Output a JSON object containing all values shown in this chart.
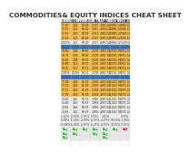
{
  "title": "COMMODITIES& EQUITY INDICES CHEAT SHEET",
  "title_color": "#2d2d2d",
  "title_fontsize": 5.2,
  "col_headers": [
    "SILVER",
    "GOLD COPPER",
    "WTI CRUDE",
    "10 YR",
    "S&P 500",
    "DOW 30",
    "FTSE 100"
  ],
  "header_bg": "#4a4a4a",
  "header_fg": "#ffffff",
  "orange_bg": "#f4b942",
  "white_bg": "#f0f0f0",
  "blue_sep": "#3a6ca8",
  "group1_orange": [
    [
      "17.60",
      "3.21",
      "60.28",
      "2.357",
      "2390.52",
      "20996.12",
      "7368.12"
    ],
    [
      "17.55",
      "3.21",
      "60.12",
      "2.357",
      "2390.52",
      "20996.12",
      "7368.12"
    ],
    [
      "17.67",
      "3.21",
      "60.28",
      "2.357",
      "2390.52",
      "20996.12",
      "7368.12"
    ],
    [
      "17.64",
      "3.21",
      "60.28",
      "2.357",
      "2390.52",
      "20996.12",
      "7368.12"
    ]
  ],
  "group1_white": [
    [
      "1.505%",
      "3.21",
      "60.28",
      "2.357",
      "2390.52",
      "20996.12",
      "1.305%"
    ]
  ],
  "group2_orange": [
    [
      "16.80",
      "3.04",
      "59.68",
      "2.258",
      "2363.74",
      "20743.19",
      "7351.14"
    ],
    [
      "16.79",
      "3.04",
      "59.68",
      "2.258",
      "2363.74",
      "20743.19",
      "7351.14"
    ],
    [
      "16.82",
      "3.08",
      "60.19",
      "2.258",
      "2363.74",
      "20743.19",
      "7351.14"
    ],
    [
      "16.88",
      "3.11",
      "60.31",
      "2.258",
      "2363.74",
      "20743.19",
      "7351.14"
    ],
    [
      "16.91",
      "3.11",
      "60.31",
      "2.258",
      "2363.74",
      "20743.19",
      "7351.14"
    ]
  ],
  "group2_white": [
    [
      "2.395%",
      "0.18%",
      "60.31",
      "2.258",
      "2363.74",
      "20743.19",
      "7351.14"
    ]
  ],
  "group3_orange": [
    [
      "17.08",
      "3.42",
      "61.19",
      "2.358",
      "2397.02",
      "21020.76",
      "7375.12"
    ],
    [
      "17.13",
      "3.42",
      "61.19",
      "2.358",
      "2397.02",
      "21020.76",
      "7375.12"
    ],
    [
      "17.13",
      "3.43",
      "61.19",
      "2.358",
      "2397.02",
      "21020.76",
      "7375.12"
    ],
    [
      "17.19",
      "3.43",
      "61.19",
      "2.358",
      "2397.02",
      "21020.76",
      "7375.12"
    ]
  ],
  "group3_white": [
    [
      "14.80",
      "3.45",
      "60.19",
      "1.958",
      "2397.02",
      "21020.76",
      "7375.12"
    ],
    [
      "14.84",
      "3.45",
      "60.19",
      "1.958",
      "2397.02",
      "21020.76",
      "7375.12"
    ],
    [
      "14.90",
      "3.45",
      "60.19",
      "1.958",
      "2397.02",
      "21020.76",
      "7375.12"
    ],
    [
      "14.93",
      "3.41",
      "60.19",
      "1.958",
      "2397.02",
      "21020.76",
      "7375.12"
    ]
  ],
  "pct_rows": [
    [
      "-1.60%",
      "-0.91%",
      "-1.97%",
      "5.06%",
      "1.50%",
      "",
      "0.74%"
    ],
    [
      "-5.88%",
      "-5.18%",
      "-4.97%",
      "-6.07%",
      "-4.57%",
      "10.51%",
      "-3.91%"
    ],
    [
      "-10.88%",
      "-5.18%",
      "-4.97%",
      "-6.07%",
      "-4.57%",
      "10.51%",
      "-3.91%"
    ]
  ],
  "signal_rows": [
    [
      "Buy",
      "Buy",
      "Buy",
      "Buy",
      "Buy",
      "Buy",
      "Sell"
    ],
    [
      "Buy",
      "Buy",
      "",
      "Buy",
      "Buy",
      "",
      ""
    ],
    [
      "Buy",
      "",
      "",
      "",
      "Buy",
      "",
      ""
    ]
  ],
  "buy_color": "#00aa00",
  "sell_color": "#cc0000",
  "signal_bg": "#e8e8e8"
}
